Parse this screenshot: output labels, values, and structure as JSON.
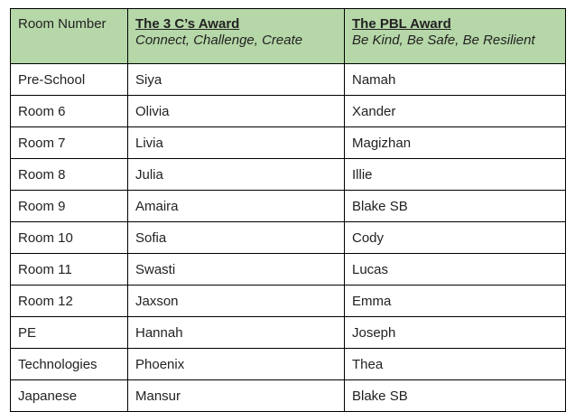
{
  "table": {
    "header": {
      "room": "Room Number",
      "award1_title": "The 3 C’s Award",
      "award1_subtitle": "Connect, Challenge, Create",
      "award2_title": "The PBL Award",
      "award2_subtitle": "Be Kind, Be Safe, Be Resilient"
    },
    "rows": [
      [
        "Pre-School",
        "Siya",
        "Namah"
      ],
      [
        "Room 6",
        "Olivia",
        "Xander"
      ],
      [
        "Room 7",
        "Livia",
        "Magizhan"
      ],
      [
        "Room 8",
        "Julia",
        "Illie"
      ],
      [
        "Room 9",
        "Amaira",
        "Blake SB"
      ],
      [
        "Room 10",
        "Sofia",
        "Cody"
      ],
      [
        "Room 11",
        "Swasti",
        "Lucas"
      ],
      [
        "Room 12",
        "Jaxson",
        "Emma"
      ],
      [
        "PE",
        "Hannah",
        "Joseph"
      ],
      [
        "Technologies",
        "Phoenix",
        "Thea"
      ],
      [
        "Japanese",
        "Mansur",
        "Blake SB"
      ]
    ],
    "header_color": "#b6d7a8"
  }
}
